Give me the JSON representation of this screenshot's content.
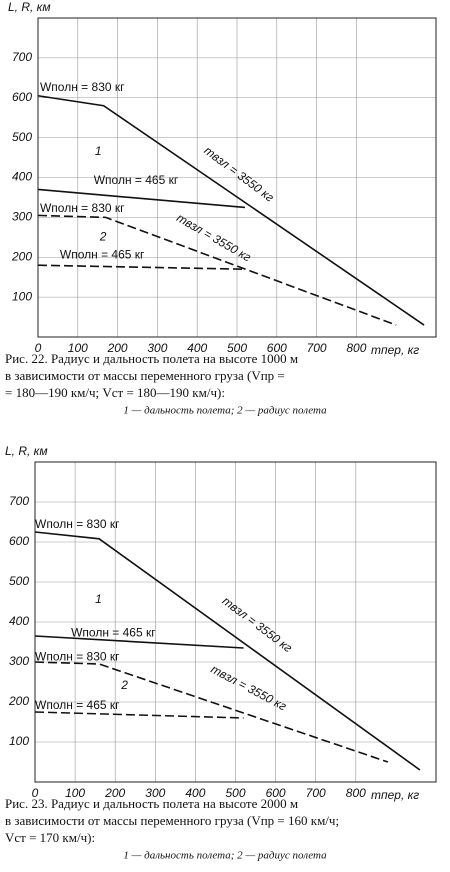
{
  "chart_data": [
    {
      "type": "line",
      "ylabel": "L, R, км",
      "xlabel": "mпер, кг",
      "xlim": [
        0,
        1000
      ],
      "ylim": [
        0,
        800
      ],
      "xticks": [
        0,
        100,
        200,
        300,
        400,
        500,
        600,
        700,
        800
      ],
      "yticks": [
        100,
        200,
        300,
        400,
        500,
        600,
        700
      ],
      "grid": true,
      "series": [
        {
          "name": "Wполн = 830 кг",
          "color": "#111111",
          "style": "solid",
          "x": [
            0,
            165,
            970
          ],
          "values": [
            605,
            580,
            30
          ]
        },
        {
          "name": "Wполн = 465 кг",
          "color": "#111111",
          "style": "solid",
          "x": [
            0,
            520
          ],
          "values": [
            370,
            325
          ]
        },
        {
          "name": "Wполн = 830 кг",
          "color": "#111111",
          "style": "dashed",
          "x": [
            0,
            170,
            900
          ],
          "values": [
            305,
            300,
            30
          ]
        },
        {
          "name": "Wполн = 465 кг",
          "color": "#111111",
          "style": "dashed",
          "x": [
            0,
            520
          ],
          "values": [
            180,
            170
          ]
        }
      ],
      "annotations": [
        "1",
        "2",
        "mвзл = 3550 кг",
        "mвзл = 3550 кг"
      ],
      "caption": [
        "Рис. 22. Радиус и дальность полета на высоте 1000 м",
        "в зависимости от массы переменного груза (Vпр =",
        "= 180—190 км/ч; Vст = 180—190 км/ч):"
      ],
      "note": "1 — дальность полета; 2 — радиус полета"
    },
    {
      "type": "line",
      "ylabel": "L, R, км",
      "xlabel": "mпер, кг",
      "xlim": [
        0,
        1000
      ],
      "ylim": [
        0,
        800
      ],
      "xticks": [
        0,
        100,
        200,
        300,
        400,
        500,
        600,
        700,
        800
      ],
      "yticks": [
        100,
        200,
        300,
        400,
        500,
        600,
        700
      ],
      "grid": true,
      "series": [
        {
          "name": "Wполн = 830 кг",
          "color": "#111111",
          "style": "solid",
          "x": [
            0,
            160,
            960
          ],
          "values": [
            625,
            608,
            30
          ]
        },
        {
          "name": "Wполн = 465 кг",
          "color": "#111111",
          "style": "solid",
          "x": [
            0,
            520
          ],
          "values": [
            365,
            335
          ]
        },
        {
          "name": "Wполн = 830 кг",
          "color": "#111111",
          "style": "dashed",
          "x": [
            0,
            160,
            880
          ],
          "values": [
            300,
            295,
            50
          ]
        },
        {
          "name": "Wполн = 465 кг",
          "color": "#111111",
          "style": "dashed",
          "x": [
            0,
            520
          ],
          "values": [
            175,
            160
          ]
        }
      ],
      "annotations": [
        "1",
        "2",
        "mвзл = 3550 кг",
        "mвзл = 3550 кг"
      ],
      "caption": [
        "Рис. 23. Радиус и дальность полета на высоте 2000 м",
        "в зависимости от массы переменного груза (Vпр = 160 км/ч;",
        "Vст = 170 км/ч):"
      ],
      "note": "1 — дальность полета; 2 — радиус полета"
    }
  ]
}
